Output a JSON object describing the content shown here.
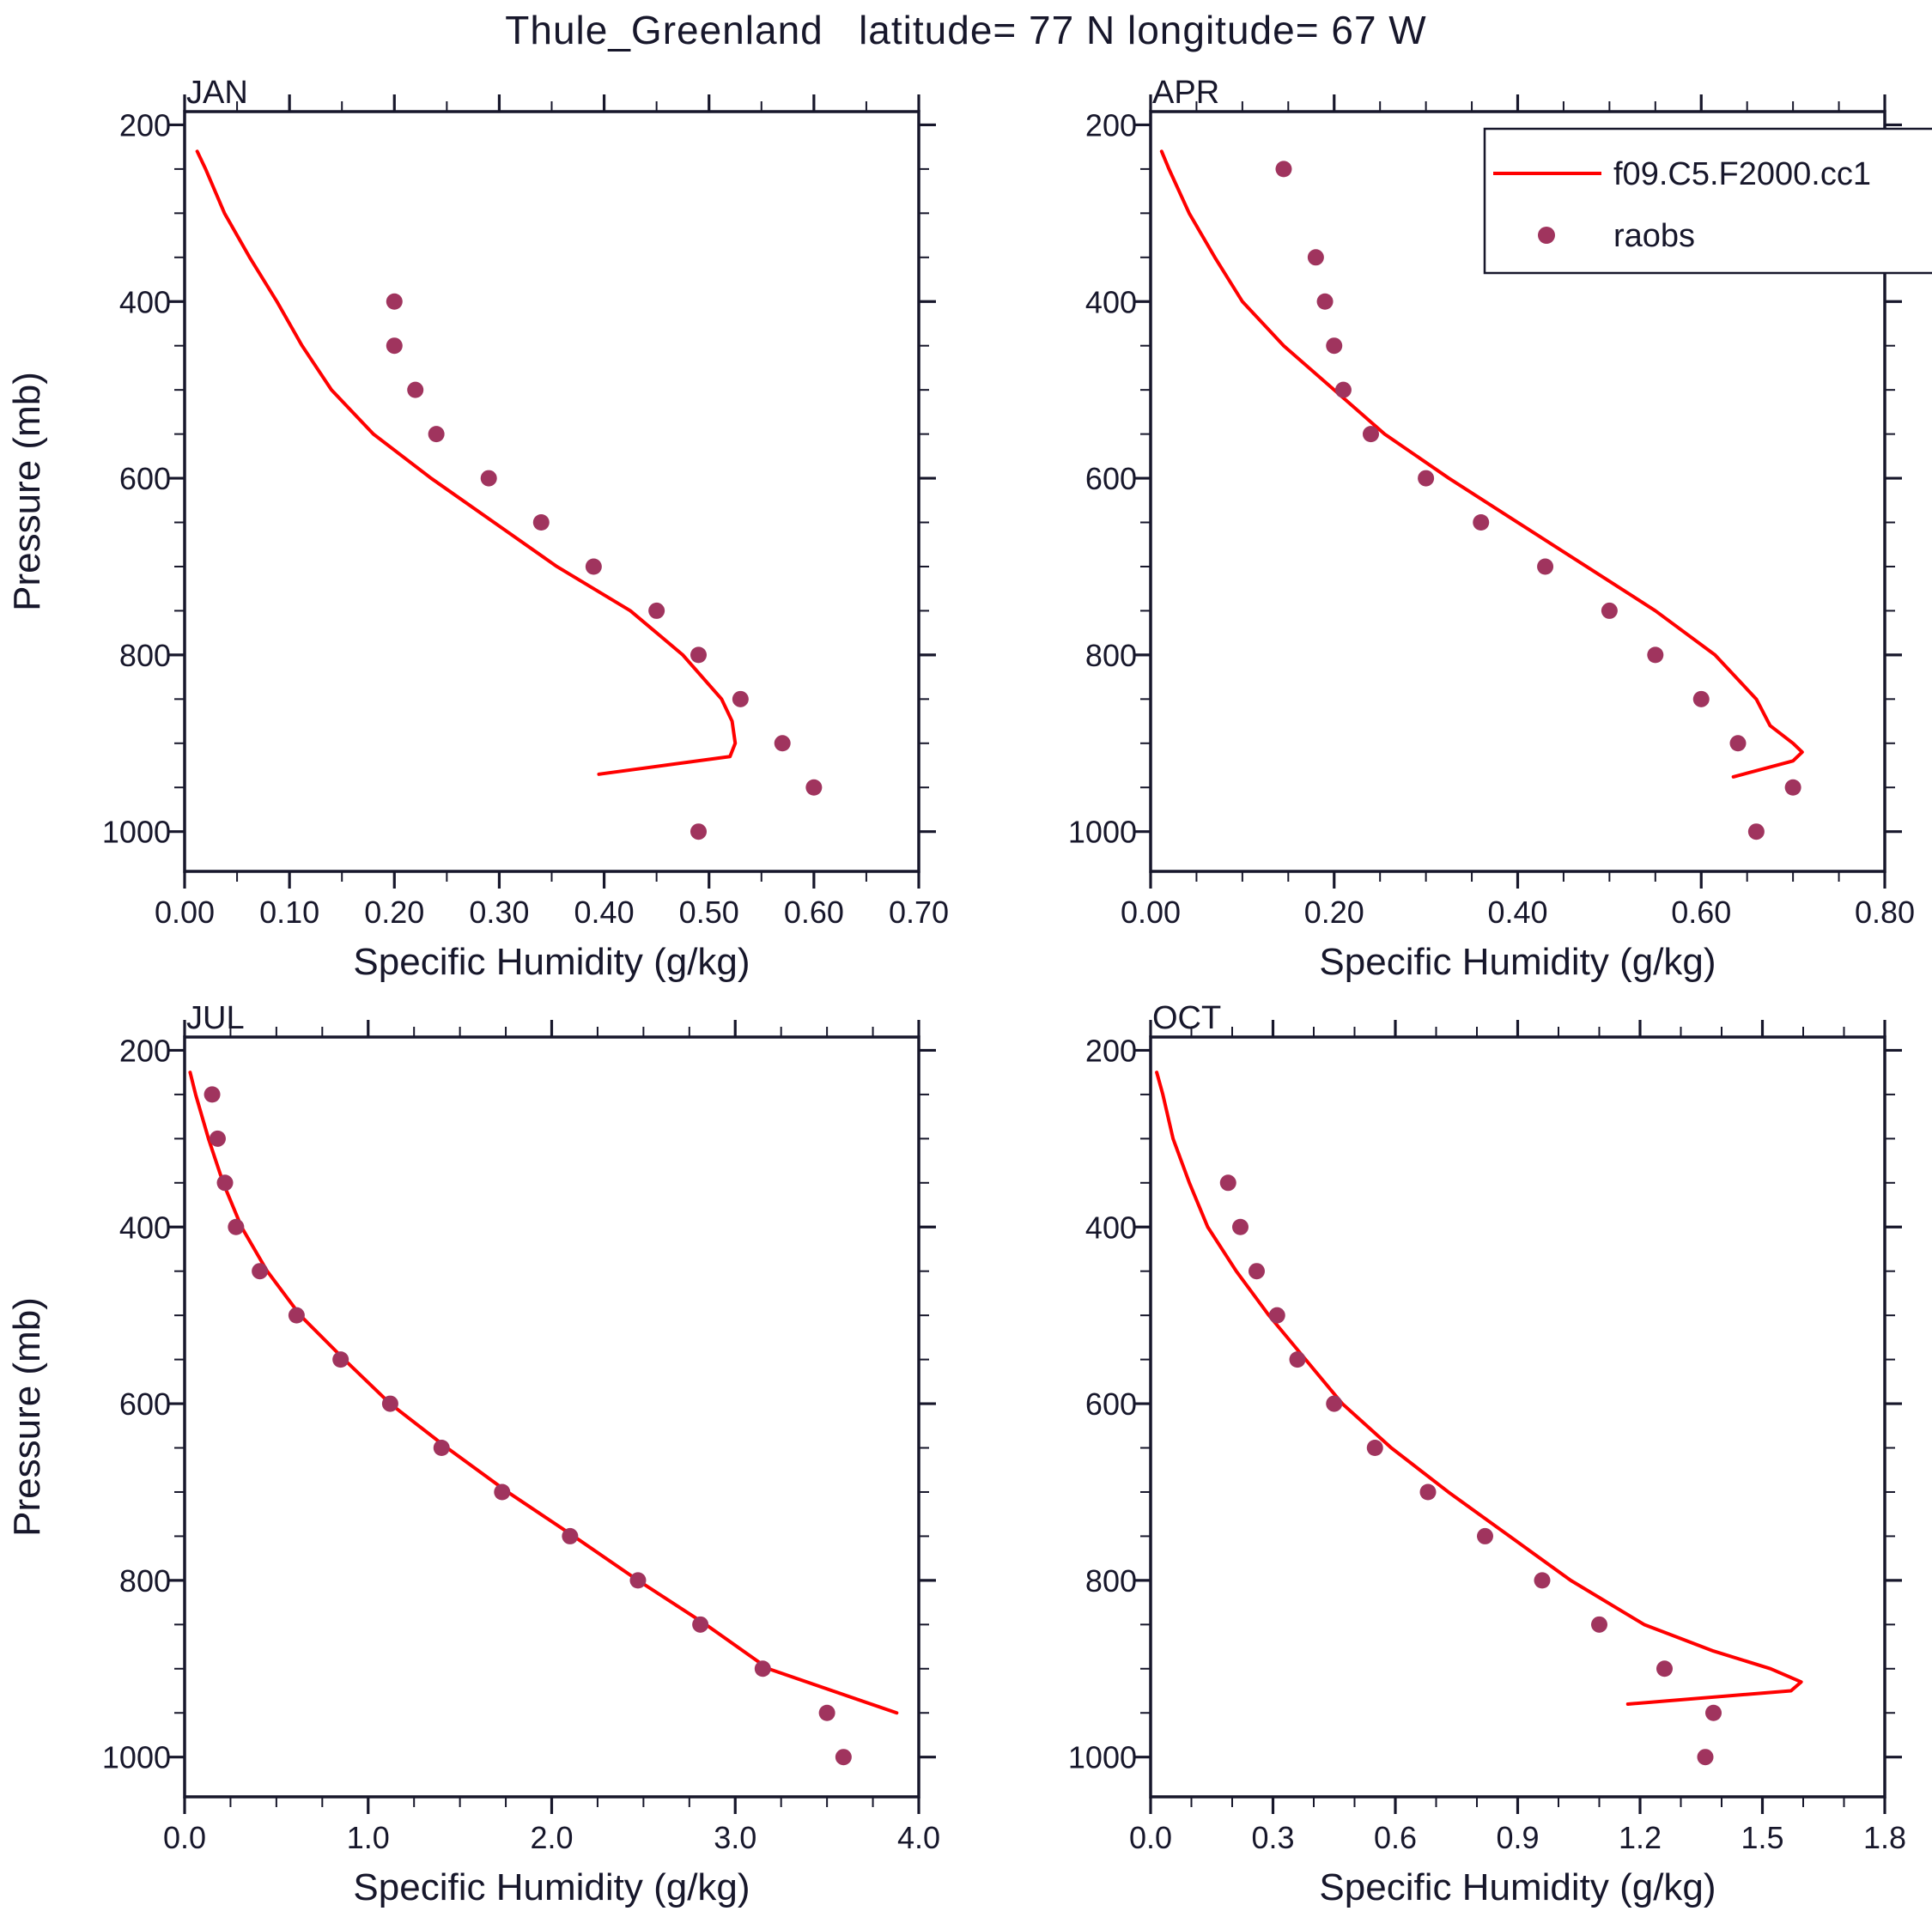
{
  "title": "Thule_Greenland   latitude= 77 N longitude= 67 W",
  "colors": {
    "model_line": "#ff0000",
    "raobs_dot": "#a0345e",
    "text": "#17172b",
    "frame": "#17172b",
    "background": "#ffffff"
  },
  "legend": {
    "line_label": "f09.C5.F2000.cc1",
    "dot_label": "raobs",
    "position": "top-right of APR panel"
  },
  "chart_data": [
    {
      "type": "line+scatter",
      "label": "JAN",
      "xlabel": "Specific Humidity (g/kg)",
      "ylabel": "Pressure (mb)",
      "xlim": [
        0.0,
        0.7
      ],
      "x_ticks": [
        0.0,
        0.1,
        0.2,
        0.3,
        0.4,
        0.5,
        0.6,
        0.7
      ],
      "x_tick_labels": [
        "0.00",
        "0.10",
        "0.20",
        "0.30",
        "0.40",
        "0.50",
        "0.60",
        "0.70"
      ],
      "x_minor_step": 0.05,
      "ylim": [
        200,
        1000
      ],
      "y_ticks": [
        200,
        400,
        600,
        800,
        1000
      ],
      "y_minor_step": 50,
      "y_inverted": true,
      "show_y_title": true,
      "show_legend": false,
      "series": [
        {
          "name": "f09.C5.F2000.cc1",
          "type": "line",
          "pressure": [
            230,
            250,
            300,
            350,
            400,
            450,
            500,
            550,
            600,
            650,
            700,
            750,
            800,
            850,
            875,
            900,
            915,
            935
          ],
          "q": [
            0.012,
            0.02,
            0.038,
            0.062,
            0.088,
            0.112,
            0.14,
            0.18,
            0.235,
            0.295,
            0.355,
            0.425,
            0.475,
            0.512,
            0.522,
            0.525,
            0.52,
            0.395
          ]
        },
        {
          "name": "raobs",
          "type": "scatter",
          "pressure": [
            400,
            450,
            500,
            550,
            600,
            650,
            700,
            750,
            800,
            850,
            900,
            950,
            1000
          ],
          "q": [
            0.2,
            0.2,
            0.22,
            0.24,
            0.29,
            0.34,
            0.39,
            0.45,
            0.49,
            0.53,
            0.57,
            0.6,
            0.49
          ]
        }
      ]
    },
    {
      "type": "line+scatter",
      "label": "APR",
      "xlabel": "Specific Humidity (g/kg)",
      "ylabel": "Pressure (mb)",
      "xlim": [
        0.0,
        0.8
      ],
      "x_ticks": [
        0.0,
        0.2,
        0.4,
        0.6,
        0.8
      ],
      "x_tick_labels": [
        "0.00",
        "0.20",
        "0.40",
        "0.60",
        "0.80"
      ],
      "x_minor_step": 0.05,
      "ylim": [
        200,
        1000
      ],
      "y_ticks": [
        200,
        400,
        600,
        800,
        1000
      ],
      "y_minor_step": 50,
      "y_inverted": true,
      "show_y_title": false,
      "show_legend": true,
      "series": [
        {
          "name": "f09.C5.F2000.cc1",
          "type": "line",
          "pressure": [
            230,
            250,
            300,
            350,
            400,
            450,
            500,
            550,
            600,
            650,
            700,
            750,
            800,
            850,
            880,
            900,
            910,
            920,
            938
          ],
          "q": [
            0.012,
            0.02,
            0.042,
            0.07,
            0.1,
            0.145,
            0.2,
            0.255,
            0.325,
            0.4,
            0.475,
            0.55,
            0.615,
            0.66,
            0.675,
            0.7,
            0.71,
            0.7,
            0.635
          ]
        },
        {
          "name": "raobs",
          "type": "scatter",
          "pressure": [
            250,
            350,
            400,
            450,
            500,
            550,
            600,
            650,
            700,
            750,
            800,
            850,
            900,
            950,
            1000
          ],
          "q": [
            0.145,
            0.18,
            0.19,
            0.2,
            0.21,
            0.24,
            0.3,
            0.36,
            0.43,
            0.5,
            0.55,
            0.6,
            0.64,
            0.7,
            0.66
          ]
        }
      ]
    },
    {
      "type": "line+scatter",
      "label": "JUL",
      "xlabel": "Specific Humidity (g/kg)",
      "ylabel": "Pressure (mb)",
      "xlim": [
        0.0,
        4.0
      ],
      "x_ticks": [
        0.0,
        1.0,
        2.0,
        3.0,
        4.0
      ],
      "x_tick_labels": [
        "0.0",
        "1.0",
        "2.0",
        "3.0",
        "4.0"
      ],
      "x_minor_step": 0.25,
      "ylim": [
        200,
        1000
      ],
      "y_ticks": [
        200,
        400,
        600,
        800,
        1000
      ],
      "y_minor_step": 50,
      "y_inverted": true,
      "show_y_title": true,
      "show_legend": false,
      "series": [
        {
          "name": "f09.C5.F2000.cc1",
          "type": "line",
          "pressure": [
            225,
            250,
            300,
            350,
            400,
            450,
            500,
            550,
            600,
            650,
            700,
            750,
            800,
            850,
            900,
            950
          ],
          "q": [
            0.03,
            0.06,
            0.13,
            0.21,
            0.31,
            0.45,
            0.63,
            0.87,
            1.12,
            1.43,
            1.76,
            2.12,
            2.47,
            2.84,
            3.18,
            3.88
          ]
        },
        {
          "name": "raobs",
          "type": "scatter",
          "pressure": [
            250,
            300,
            350,
            400,
            450,
            500,
            550,
            600,
            650,
            700,
            750,
            800,
            850,
            900,
            950,
            1000
          ],
          "q": [
            0.15,
            0.18,
            0.22,
            0.28,
            0.41,
            0.61,
            0.85,
            1.12,
            1.4,
            1.73,
            2.1,
            2.47,
            2.81,
            3.15,
            3.5,
            3.59
          ]
        }
      ]
    },
    {
      "type": "line+scatter",
      "label": "OCT",
      "xlabel": "Specific Humidity (g/kg)",
      "ylabel": "Pressure (mb)",
      "xlim": [
        0.0,
        1.8
      ],
      "x_ticks": [
        0.0,
        0.3,
        0.6,
        0.9,
        1.2,
        1.5,
        1.8
      ],
      "x_tick_labels": [
        "0.0",
        "0.3",
        "0.6",
        "0.9",
        "1.2",
        "1.5",
        "1.8"
      ],
      "x_minor_step": 0.1,
      "ylim": [
        200,
        1000
      ],
      "y_ticks": [
        200,
        400,
        600,
        800,
        1000
      ],
      "y_minor_step": 50,
      "y_inverted": true,
      "show_y_title": false,
      "show_legend": false,
      "series": [
        {
          "name": "f09.C5.F2000.cc1",
          "type": "line",
          "pressure": [
            225,
            250,
            300,
            350,
            400,
            450,
            500,
            550,
            600,
            650,
            700,
            750,
            800,
            850,
            880,
            900,
            915,
            925,
            940
          ],
          "q": [
            0.015,
            0.03,
            0.055,
            0.095,
            0.14,
            0.21,
            0.29,
            0.38,
            0.47,
            0.59,
            0.73,
            0.88,
            1.03,
            1.21,
            1.38,
            1.52,
            1.595,
            1.57,
            1.17
          ]
        },
        {
          "name": "raobs",
          "type": "scatter",
          "pressure": [
            350,
            400,
            450,
            500,
            550,
            600,
            650,
            700,
            750,
            800,
            850,
            900,
            950,
            1000
          ],
          "q": [
            0.19,
            0.22,
            0.26,
            0.31,
            0.36,
            0.45,
            0.55,
            0.68,
            0.82,
            0.96,
            1.1,
            1.26,
            1.38,
            1.36
          ]
        }
      ]
    }
  ]
}
